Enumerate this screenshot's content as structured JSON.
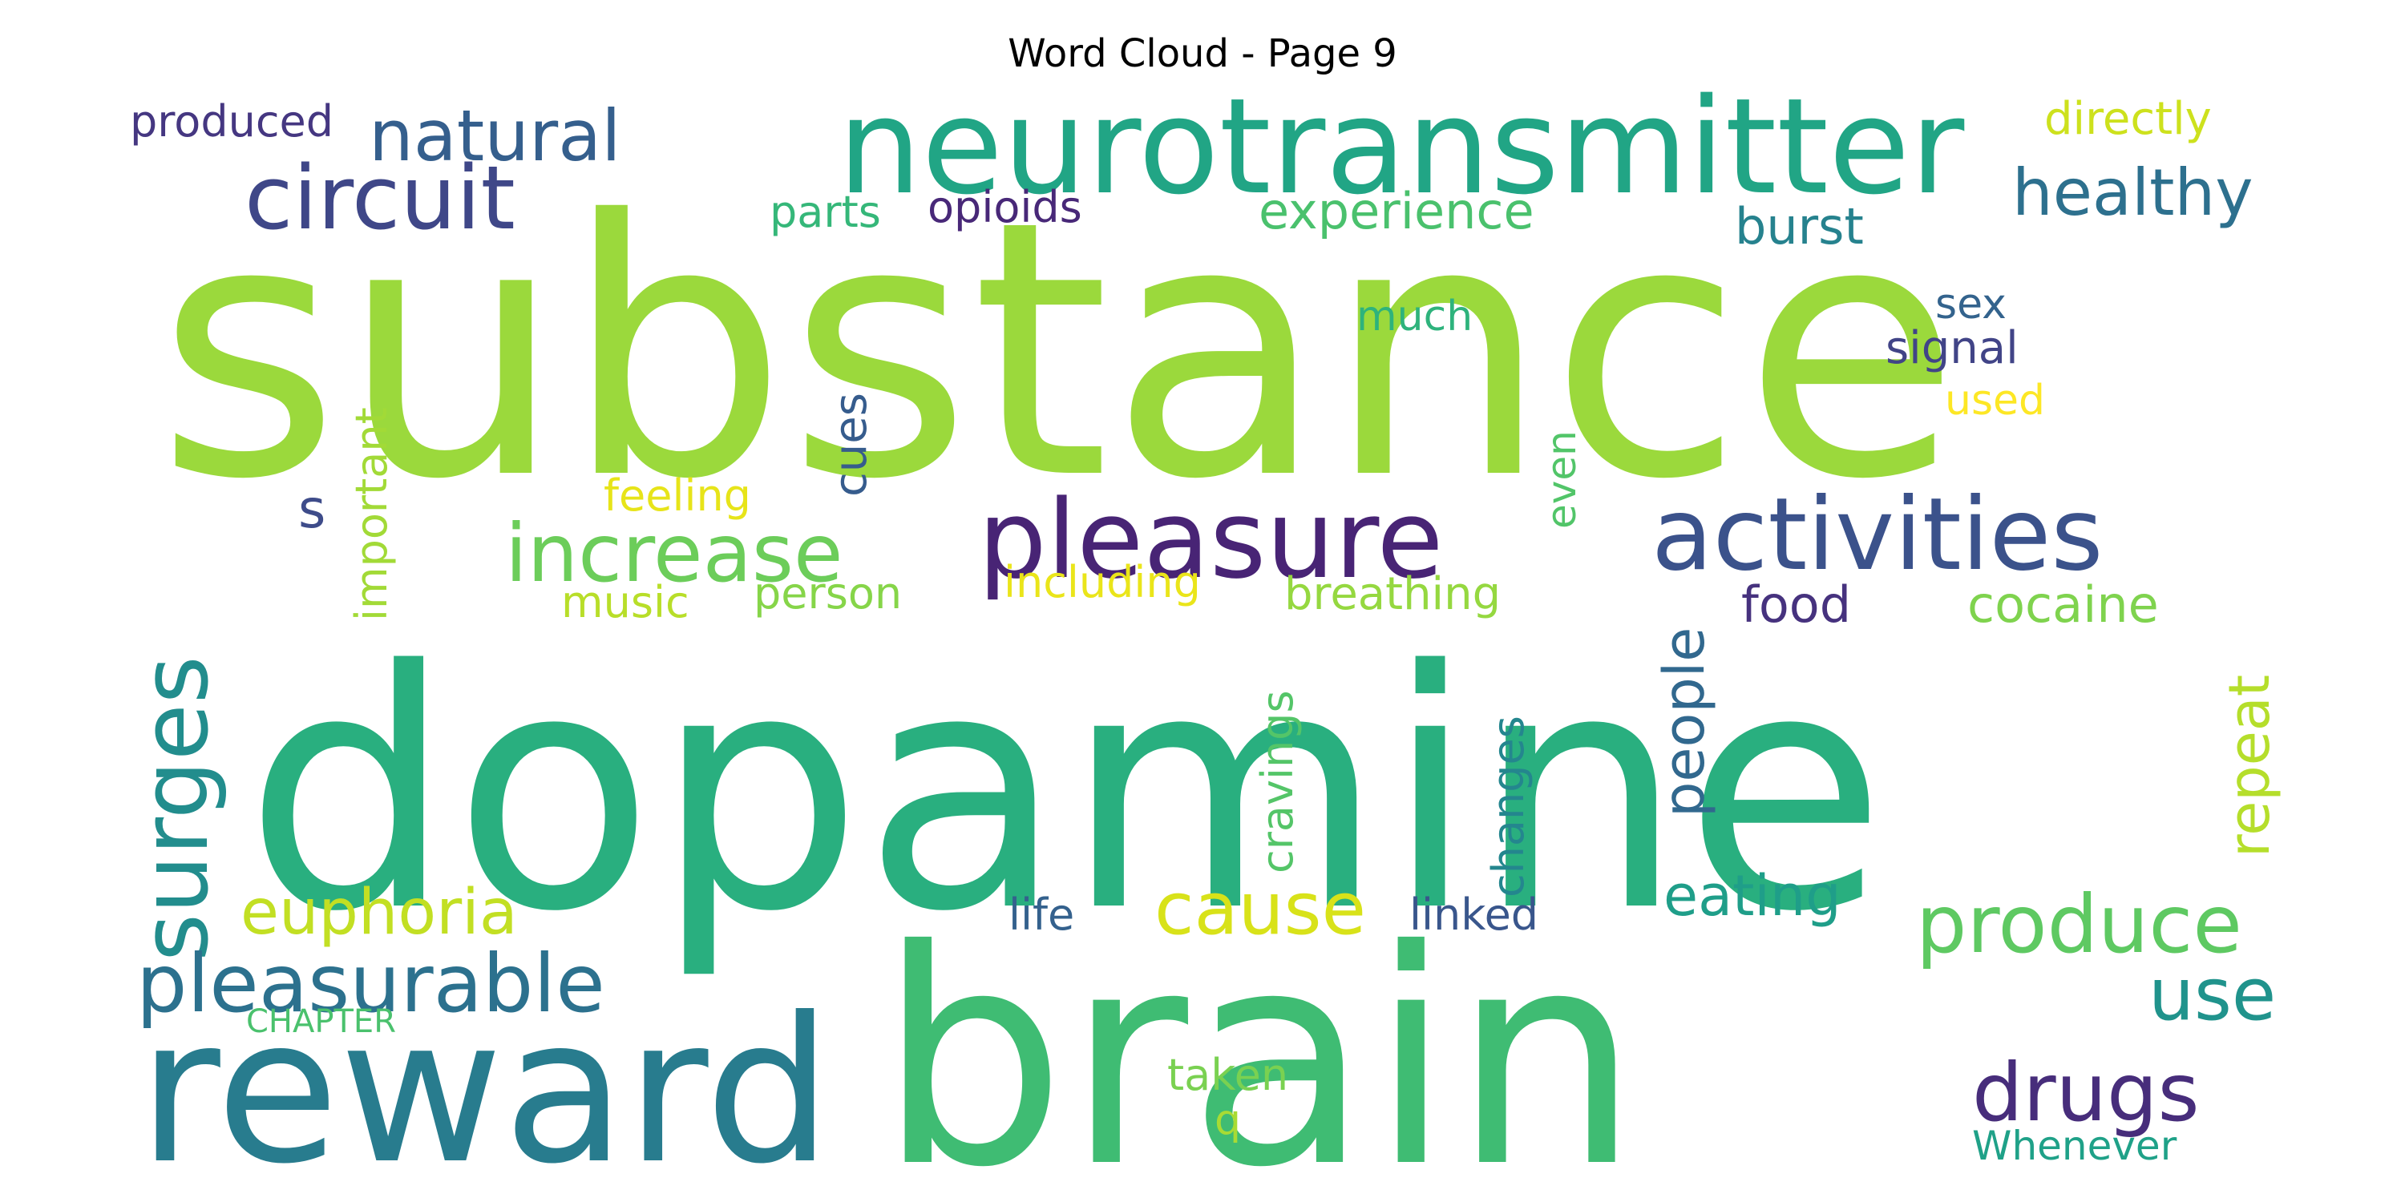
{
  "title": "Word Cloud - Page 9",
  "words": [
    {
      "text": "substance",
      "color": "#9bd93c"
    },
    {
      "text": "dopamine",
      "color": "#29af7f"
    },
    {
      "text": "brain",
      "color": "#3fbc73"
    },
    {
      "text": "reward",
      "color": "#287c8e"
    },
    {
      "text": "neurotransmitter",
      "color": "#21a585"
    },
    {
      "text": "pleasure",
      "color": "#482475"
    },
    {
      "text": "activities",
      "color": "#3b528b"
    },
    {
      "text": "circuit",
      "color": "#3f4788"
    },
    {
      "text": "increase",
      "color": "#6ccd5a"
    },
    {
      "text": "surges",
      "color": "#228d8d"
    },
    {
      "text": "pleasurable",
      "color": "#2c718e"
    },
    {
      "text": "natural",
      "color": "#355f8d"
    },
    {
      "text": "healthy",
      "color": "#2d708e"
    },
    {
      "text": "produce",
      "color": "#5ec962"
    },
    {
      "text": "drugs",
      "color": "#472d7b"
    },
    {
      "text": "cause",
      "color": "#d8e219"
    },
    {
      "text": "euphoria",
      "color": "#c2df23"
    },
    {
      "text": "experience",
      "color": "#4ac16d"
    },
    {
      "text": "use",
      "color": "#20938c"
    },
    {
      "text": "eating",
      "color": "#1f9e89"
    },
    {
      "text": "food",
      "color": "#46327e"
    },
    {
      "text": "cocaine",
      "color": "#7fd34e"
    },
    {
      "text": "burst",
      "color": "#26828e"
    },
    {
      "text": "repeat",
      "color": "#b5de2b"
    },
    {
      "text": "people",
      "color": "#31688e"
    },
    {
      "text": "breathing",
      "color": "#95d840"
    },
    {
      "text": "directly",
      "color": "#cde11d"
    },
    {
      "text": "cues",
      "color": "#365c8d"
    },
    {
      "text": "produced",
      "color": "#453781"
    },
    {
      "text": "opioids",
      "color": "#482878"
    },
    {
      "text": "parts",
      "color": "#35b779"
    },
    {
      "text": "signal",
      "color": "#414487"
    },
    {
      "text": "sex",
      "color": "#33638d"
    },
    {
      "text": "much",
      "color": "#2eb37c"
    },
    {
      "text": "used",
      "color": "#fde725"
    },
    {
      "text": "feeling",
      "color": "#e7e419"
    },
    {
      "text": "including",
      "color": "#eae51a"
    },
    {
      "text": "music",
      "color": "#b8de29"
    },
    {
      "text": "person",
      "color": "#86d549"
    },
    {
      "text": "important",
      "color": "#a2da37"
    },
    {
      "text": "s",
      "color": "#3e4c8a"
    },
    {
      "text": "even",
      "color": "#52c569"
    },
    {
      "text": "cravings",
      "color": "#54c568"
    },
    {
      "text": "changes",
      "color": "#24868e"
    },
    {
      "text": "life",
      "color": "#34618d"
    },
    {
      "text": "linked",
      "color": "#39568c"
    },
    {
      "text": "taken",
      "color": "#7ad151"
    },
    {
      "text": "q",
      "color": "#a8db34"
    },
    {
      "text": "CHAPTER",
      "color": "#4ac16d"
    },
    {
      "text": "Whenever",
      "color": "#1fa188"
    }
  ]
}
